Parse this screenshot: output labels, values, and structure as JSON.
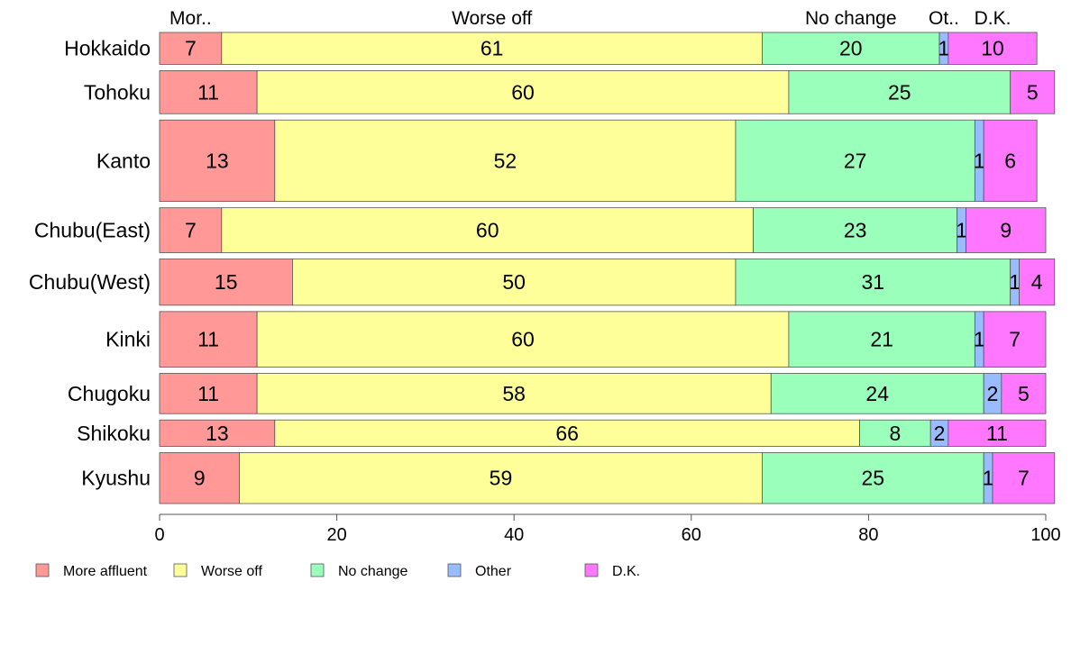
{
  "chart_data": {
    "type": "bar",
    "orientation": "horizontal",
    "stacked": true,
    "variable_width": true,
    "categories": [
      "Hokkaido",
      "Tohoku",
      "Kanto",
      "Chubu(East)",
      "Chubu(West)",
      "Kinki",
      "Chugoku",
      "Shikoku",
      "Kyushu"
    ],
    "series": [
      {
        "name": "More affluent",
        "top_label": "Mor..",
        "color": "#ff9896",
        "values": [
          7,
          11,
          13,
          7,
          15,
          11,
          11,
          13,
          9
        ]
      },
      {
        "name": "Worse off",
        "top_label": "Worse off",
        "color": "#ffff99",
        "values": [
          61,
          60,
          52,
          60,
          50,
          60,
          58,
          66,
          59
        ]
      },
      {
        "name": "No change",
        "top_label": "No change",
        "color": "#99ffbb",
        "values": [
          20,
          25,
          27,
          23,
          31,
          21,
          24,
          8,
          25
        ]
      },
      {
        "name": "Other",
        "top_label": "Ot..",
        "color": "#99bbff",
        "values": [
          1,
          0,
          1,
          1,
          1,
          1,
          2,
          2,
          1
        ]
      },
      {
        "name": "D.K.",
        "top_label": "D.K.",
        "color": "#ff77ff",
        "values": [
          10,
          5,
          6,
          9,
          4,
          7,
          5,
          11,
          7
        ]
      }
    ],
    "row_weights": [
      0.69,
      0.93,
      1.76,
      0.97,
      1.0,
      1.2,
      0.87,
      0.57,
      1.1
    ],
    "xlim": [
      0,
      100
    ],
    "xticks": [
      0,
      20,
      40,
      60,
      80,
      100
    ],
    "title": "",
    "xlabel": "",
    "ylabel": "",
    "grid": false,
    "legend_position": "bottom-left"
  }
}
